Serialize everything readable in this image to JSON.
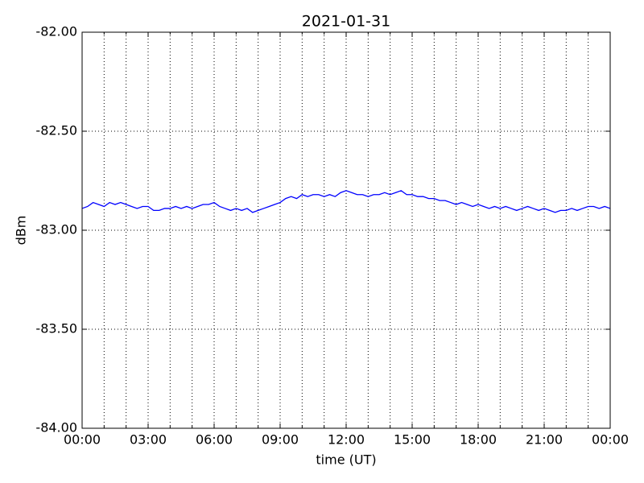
{
  "chart_data": {
    "type": "line",
    "title": "2021-01-31",
    "xlabel": "time (UT)",
    "ylabel": "dBm",
    "x": [
      0,
      0.25,
      0.5,
      0.75,
      1,
      1.25,
      1.5,
      1.75,
      2,
      2.25,
      2.5,
      2.75,
      3,
      3.25,
      3.5,
      3.75,
      4,
      4.25,
      4.5,
      4.75,
      5,
      5.25,
      5.5,
      5.75,
      6,
      6.25,
      6.5,
      6.75,
      7,
      7.25,
      7.5,
      7.75,
      8,
      8.25,
      8.5,
      8.75,
      9,
      9.25,
      9.5,
      9.75,
      10,
      10.25,
      10.5,
      10.75,
      11,
      11.25,
      11.5,
      11.75,
      12,
      12.25,
      12.5,
      12.75,
      13,
      13.25,
      13.5,
      13.75,
      14,
      14.25,
      14.5,
      14.75,
      15,
      15.25,
      15.5,
      15.75,
      16,
      16.25,
      16.5,
      16.75,
      17,
      17.25,
      17.5,
      17.75,
      18,
      18.25,
      18.5,
      18.75,
      19,
      19.25,
      19.5,
      19.75,
      20,
      20.25,
      20.5,
      20.75,
      21,
      21.25,
      21.5,
      21.75,
      22,
      22.25,
      22.5,
      22.75,
      23,
      23.25,
      23.5,
      23.75,
      24
    ],
    "series": [
      {
        "name": "dBm",
        "color": "#0000ff",
        "values": [
          -82.89,
          -82.88,
          -82.86,
          -82.87,
          -82.88,
          -82.86,
          -82.87,
          -82.86,
          -82.87,
          -82.88,
          -82.89,
          -82.88,
          -82.88,
          -82.9,
          -82.9,
          -82.89,
          -82.89,
          -82.88,
          -82.89,
          -82.88,
          -82.89,
          -82.88,
          -82.87,
          -82.87,
          -82.86,
          -82.88,
          -82.89,
          -82.9,
          -82.89,
          -82.9,
          -82.89,
          -82.91,
          -82.9,
          -82.89,
          -82.88,
          -82.87,
          -82.86,
          -82.84,
          -82.83,
          -82.84,
          -82.82,
          -82.83,
          -82.82,
          -82.82,
          -82.83,
          -82.82,
          -82.83,
          -82.81,
          -82.8,
          -82.81,
          -82.82,
          -82.82,
          -82.83,
          -82.82,
          -82.82,
          -82.81,
          -82.82,
          -82.81,
          -82.8,
          -82.82,
          -82.82,
          -82.83,
          -82.83,
          -82.84,
          -82.84,
          -82.85,
          -82.85,
          -82.86,
          -82.87,
          -82.86,
          -82.87,
          -82.88,
          -82.87,
          -82.88,
          -82.89,
          -82.88,
          -82.89,
          -82.88,
          -82.89,
          -82.9,
          -82.89,
          -82.88,
          -82.89,
          -82.9,
          -82.89,
          -82.9,
          -82.91,
          -82.9,
          -82.9,
          -82.89,
          -82.9,
          -82.89,
          -82.88,
          -82.88,
          -82.89,
          -82.88,
          -82.89
        ]
      }
    ],
    "xlim": [
      0,
      24
    ],
    "xticks": [
      {
        "value": 0,
        "label": "00:00"
      },
      {
        "value": 3,
        "label": "03:00"
      },
      {
        "value": 6,
        "label": "06:00"
      },
      {
        "value": 9,
        "label": "09:00"
      },
      {
        "value": 12,
        "label": "12:00"
      },
      {
        "value": 15,
        "label": "15:00"
      },
      {
        "value": 18,
        "label": "18:00"
      },
      {
        "value": 21,
        "label": "21:00"
      },
      {
        "value": 24,
        "label": "00:00"
      }
    ],
    "xminorticks": [
      1,
      2,
      4,
      5,
      7,
      8,
      10,
      11,
      13,
      14,
      16,
      17,
      19,
      20,
      22,
      23
    ],
    "ylim": [
      -84,
      -82
    ],
    "yticks": [
      {
        "value": -84,
        "label": "-84.00"
      },
      {
        "value": -83.5,
        "label": "-83.50"
      },
      {
        "value": -83,
        "label": "-83.00"
      },
      {
        "value": -82.5,
        "label": "-82.50"
      },
      {
        "value": -82,
        "label": "-82.00"
      }
    ],
    "grid": true
  }
}
